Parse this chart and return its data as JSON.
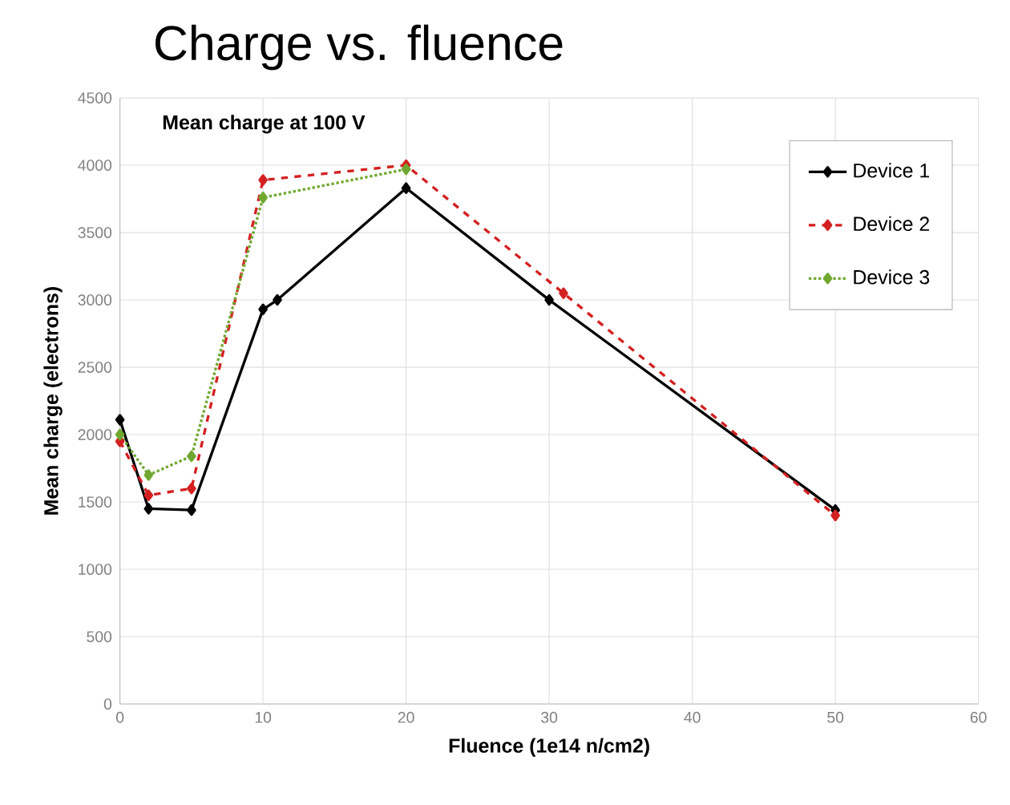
{
  "chart_data": {
    "type": "line",
    "title": "Charge vs. fluence",
    "xlabel": "Fluence (1e14 n/cm2)",
    "ylabel": "Mean charge (electrons)",
    "annotations": [
      "Mean charge at 100 V"
    ],
    "xlim": [
      0,
      60
    ],
    "xticks": [
      0,
      10,
      20,
      30,
      40,
      50,
      60
    ],
    "ylim": [
      0,
      4500
    ],
    "yticks": [
      0,
      500,
      1000,
      1500,
      2000,
      2500,
      3000,
      3500,
      4000,
      4500
    ],
    "grid": true,
    "legend": "top right",
    "marker": "diamond",
    "series": [
      {
        "name": "Device 1",
        "color": "#000000",
        "line_style": "solid",
        "x": [
          0,
          2,
          5,
          10,
          11,
          20,
          30,
          50
        ],
        "values": [
          2110,
          1450,
          1440,
          2930,
          3000,
          3830,
          3000,
          1440
        ]
      },
      {
        "name": "Device 2",
        "color": "#d42020",
        "line_style": "dashed",
        "x": [
          0,
          2,
          5,
          10,
          20,
          31,
          50
        ],
        "values": [
          1950,
          1550,
          1600,
          3890,
          4000,
          3050,
          1400
        ]
      },
      {
        "name": "Device 3",
        "color": "#70a830",
        "line_style": "dotted",
        "x": [
          0,
          2,
          5,
          10,
          20
        ],
        "values": [
          2000,
          1700,
          1840,
          3760,
          3970
        ]
      }
    ]
  }
}
